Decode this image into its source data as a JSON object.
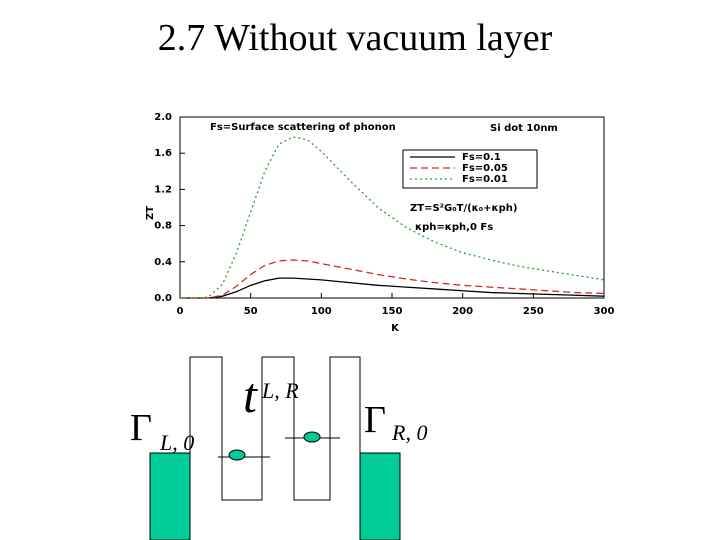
{
  "title": "2.7 Without vacuum layer",
  "chart_data": {
    "type": "line",
    "x_label": "K",
    "y_label": "ZT",
    "annotations": [
      "Fs=Surface scattering of phonon",
      "Si dot 10nm",
      "ZT=S²G₀T/(κ₀+κph)",
      "κph=κph,0 Fs"
    ],
    "x": [
      0,
      10,
      20,
      30,
      40,
      50,
      60,
      70,
      80,
      90,
      100,
      120,
      140,
      160,
      180,
      200,
      220,
      240,
      260,
      280,
      300
    ],
    "series": [
      {
        "name": "Fs=0.1",
        "color": "#000000",
        "dash": "solid",
        "values": [
          0,
          0,
          0,
          0.02,
          0.07,
          0.14,
          0.19,
          0.22,
          0.22,
          0.21,
          0.2,
          0.17,
          0.14,
          0.12,
          0.1,
          0.08,
          0.06,
          0.05,
          0.04,
          0.03,
          0.02
        ]
      },
      {
        "name": "Fs=0.05",
        "color": "#d62728",
        "dash": "dashed",
        "values": [
          0,
          0,
          0,
          0.03,
          0.13,
          0.26,
          0.36,
          0.41,
          0.42,
          0.41,
          0.38,
          0.32,
          0.26,
          0.21,
          0.17,
          0.14,
          0.12,
          0.1,
          0.08,
          0.06,
          0.05
        ]
      },
      {
        "name": "Fs=0.01",
        "color": "#2ca02c",
        "dash": "dotted",
        "values": [
          0,
          0,
          0.01,
          0.15,
          0.5,
          0.95,
          1.4,
          1.7,
          1.78,
          1.75,
          1.62,
          1.3,
          1.0,
          0.78,
          0.62,
          0.5,
          0.42,
          0.35,
          0.3,
          0.25,
          0.2
        ]
      }
    ],
    "xlim": [
      0,
      300
    ],
    "xticks": [
      0,
      50,
      100,
      150,
      200,
      250,
      300
    ],
    "ylim": [
      0,
      2.0
    ],
    "yticks": [
      {
        "value": 0,
        "label": "0.0"
      },
      0.4,
      0.8,
      1.2,
      1.6,
      {
        "value": 2.0,
        "label": "2.0"
      }
    ],
    "legend": "upper right"
  },
  "diagram": {
    "left_rate": {
      "symbol": "Γ",
      "subscript": "L, 0"
    },
    "coupling": {
      "symbol": "t",
      "subscript": "L, R"
    },
    "right_rate": {
      "symbol": "Γ",
      "subscript": "R, 0"
    }
  }
}
